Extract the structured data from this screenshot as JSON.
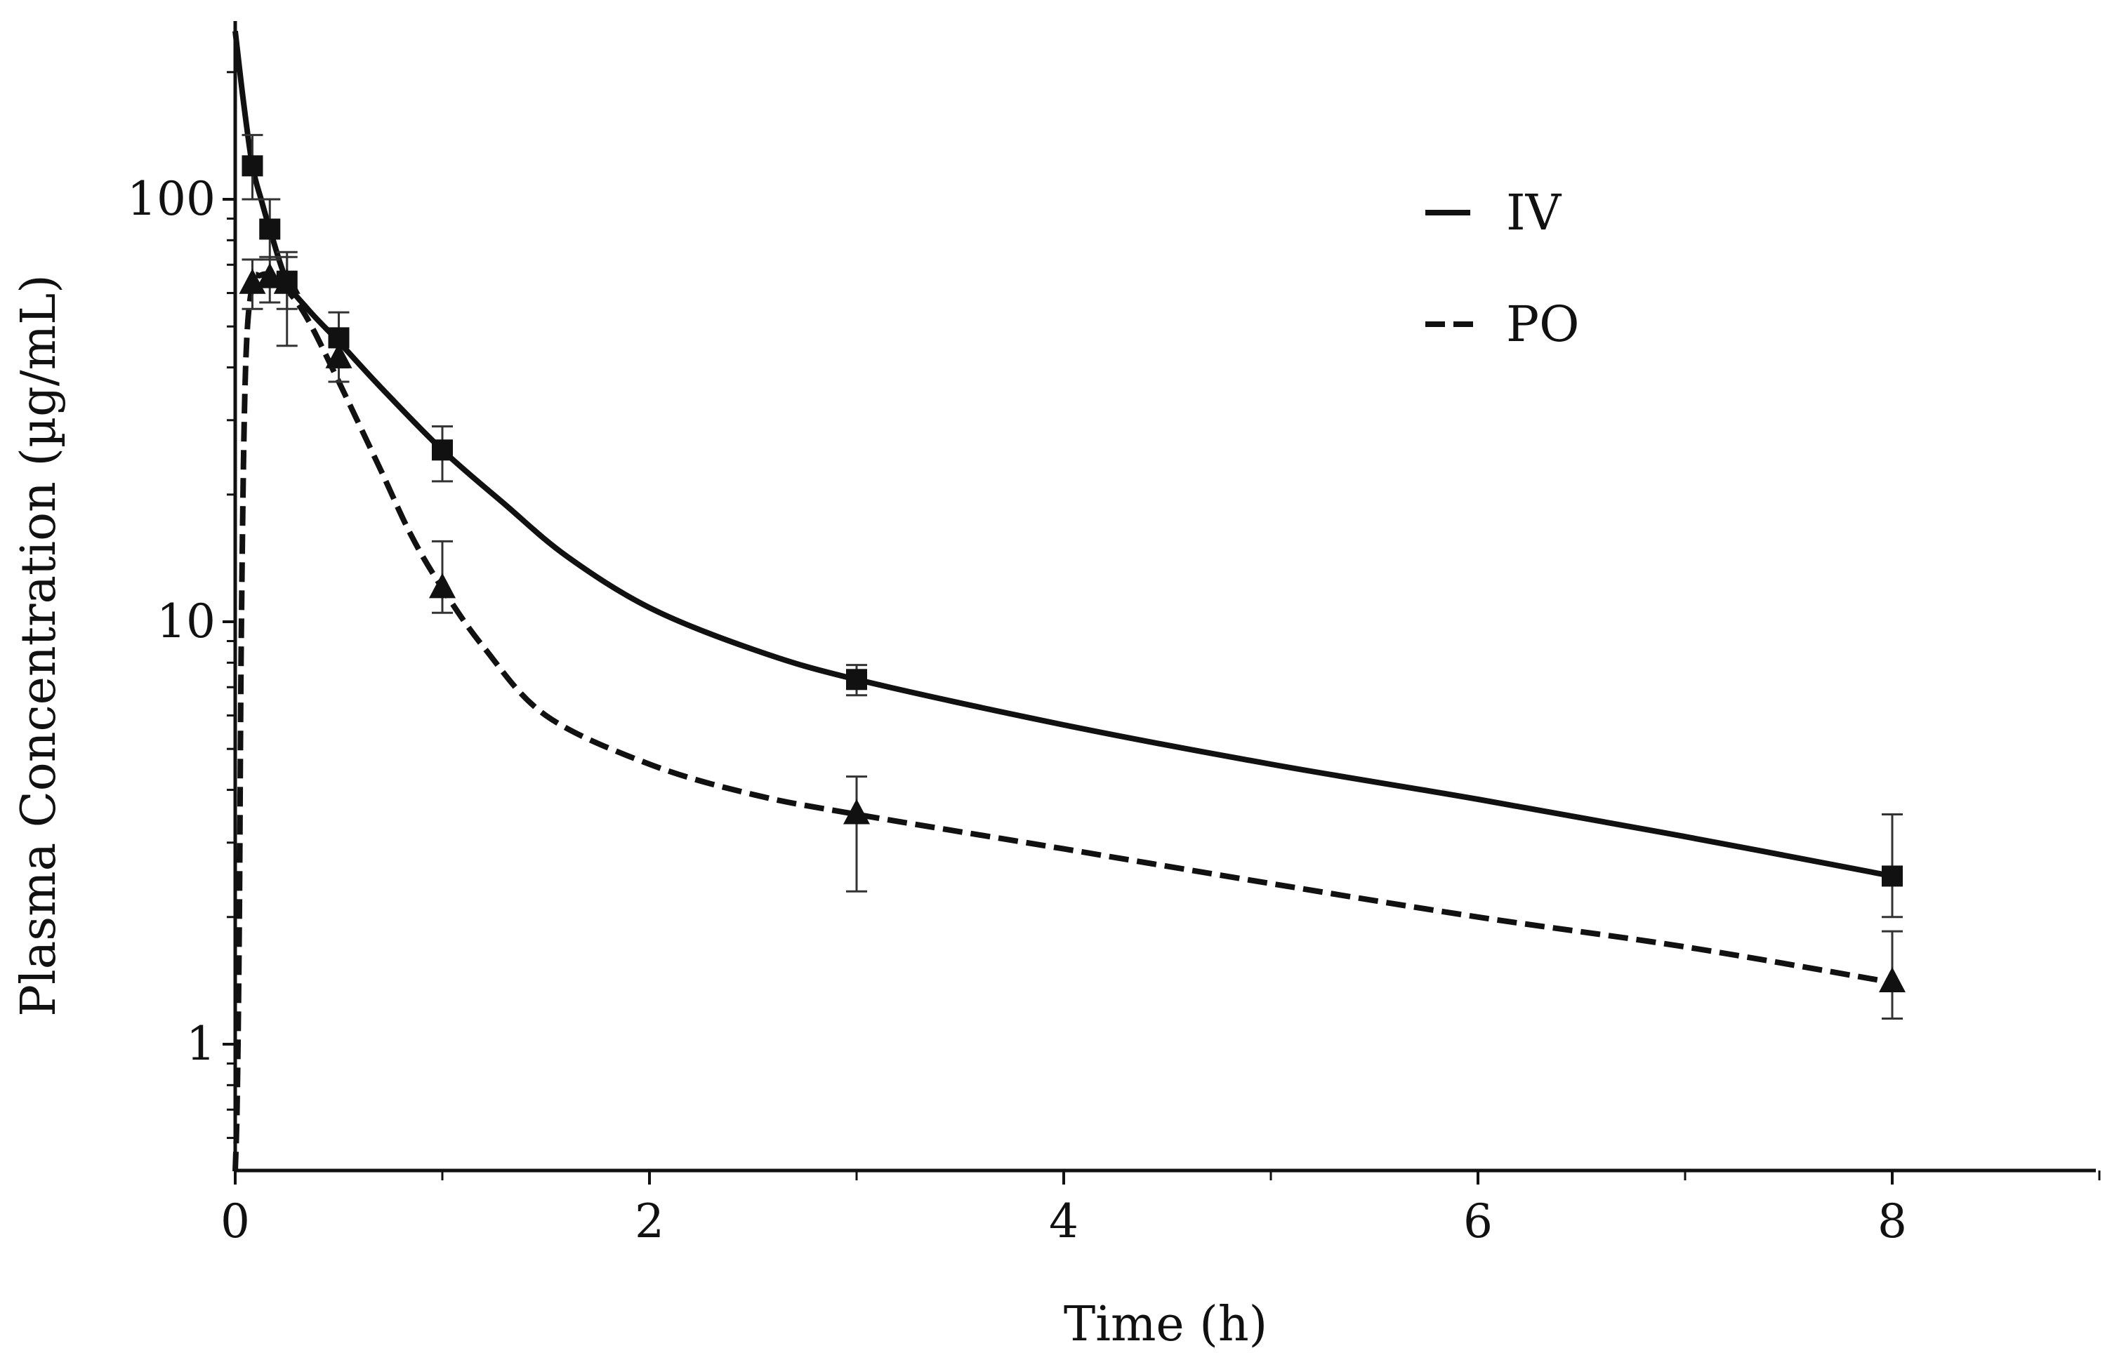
{
  "chart_data": {
    "type": "line",
    "title": "",
    "xlabel": "Time (h)",
    "ylabel": "Plasma Concentration  (µg/mL)",
    "xlim": [
      0,
      9
    ],
    "ylim": [
      0.5,
      300
    ],
    "yscale": "log",
    "x_ticks": [
      0,
      2,
      4,
      6,
      8
    ],
    "x_tick_labels": [
      "0",
      "2",
      "4",
      "6",
      "8"
    ],
    "x_minor_ticks": [
      1,
      3,
      5,
      7,
      9
    ],
    "y_ticks": [
      1,
      10,
      100
    ],
    "y_tick_labels": [
      "1",
      "10",
      "100"
    ],
    "y_minor_ticks": [
      0.5,
      0.6,
      0.7,
      0.8,
      0.9,
      2,
      3,
      4,
      5,
      6,
      7,
      8,
      9,
      20,
      30,
      40,
      50,
      60,
      70,
      80,
      90,
      200,
      300
    ],
    "grid": false,
    "legend_position": "top-right",
    "series": [
      {
        "name": "IV",
        "line_style": "solid",
        "marker": "square",
        "points": [
          {
            "x": 0.083,
            "y": 120,
            "err_low": 100,
            "err_high": 142
          },
          {
            "x": 0.167,
            "y": 85,
            "err_low": 72,
            "err_high": 100
          },
          {
            "x": 0.25,
            "y": 64,
            "err_low": 55,
            "err_high": 73
          },
          {
            "x": 0.5,
            "y": 47,
            "err_low": 40,
            "err_high": 54
          },
          {
            "x": 1,
            "y": 25.5,
            "err_low": 21.5,
            "err_high": 29
          },
          {
            "x": 3,
            "y": 7.3,
            "err_low": 6.7,
            "err_high": 7.9
          },
          {
            "x": 8,
            "y": 2.5,
            "err_low": 2.0,
            "err_high": 3.5
          }
        ],
        "fit_curve": {
          "x": [
            0,
            0.04,
            0.083,
            0.125,
            0.167,
            0.25,
            0.35,
            0.5,
            0.7,
            1,
            1.3,
            1.6,
            2,
            2.5,
            3,
            4,
            5,
            6,
            7,
            8
          ],
          "y": [
            250,
            170,
            120,
            100,
            85,
            64,
            55,
            46,
            36,
            25.5,
            19,
            14.3,
            10.8,
            8.6,
            7.3,
            5.7,
            4.6,
            3.8,
            3.1,
            2.5
          ]
        }
      },
      {
        "name": "PO",
        "line_style": "dashed",
        "marker": "triangle",
        "points": [
          {
            "x": 0.083,
            "y": 63,
            "err_low": 55,
            "err_high": 72
          },
          {
            "x": 0.167,
            "y": 65,
            "err_low": 57,
            "err_high": 73
          },
          {
            "x": 0.25,
            "y": 63,
            "err_low": 45,
            "err_high": 75
          },
          {
            "x": 0.5,
            "y": 42,
            "err_low": 37,
            "err_high": 48
          },
          {
            "x": 1,
            "y": 12,
            "err_low": 10.5,
            "err_high": 15.5
          },
          {
            "x": 3,
            "y": 3.5,
            "err_low": 2.3,
            "err_high": 4.3
          },
          {
            "x": 8,
            "y": 1.4,
            "err_low": 1.15,
            "err_high": 1.85
          }
        ],
        "fit_curve": {
          "x": [
            0,
            0.01,
            0.02,
            0.03,
            0.05,
            0.083,
            0.12,
            0.167,
            0.25,
            0.35,
            0.5,
            0.7,
            0.85,
            1,
            1.2,
            1.5,
            2,
            2.5,
            3,
            4,
            5,
            6,
            7,
            8
          ],
          "y": [
            0.5,
            0.75,
            2,
            10,
            40,
            63,
            66,
            66,
            61,
            52,
            37,
            23,
            16,
            12,
            8.7,
            6.0,
            4.6,
            3.9,
            3.5,
            2.9,
            2.4,
            2.0,
            1.7,
            1.4
          ]
        }
      }
    ]
  }
}
